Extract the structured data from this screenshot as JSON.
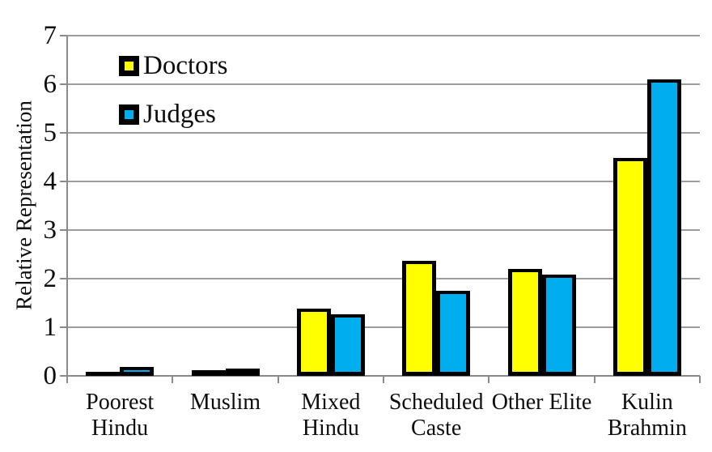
{
  "chart_data": {
    "type": "bar",
    "title": "",
    "xlabel": "",
    "ylabel": "Relative Representation",
    "ylim": [
      0,
      7
    ],
    "yticks": [
      0,
      1,
      2,
      3,
      4,
      5,
      6,
      7
    ],
    "grid": true,
    "legend_position": "top-left-inside",
    "categories": [
      "Poorest Hindu",
      "Muslim",
      "Mixed Hindu",
      "Scheduled Caste",
      "Other Elite",
      "Kulin Brahmin"
    ],
    "category_label_lines": [
      [
        "Poorest",
        "Hindu"
      ],
      [
        "Muslim"
      ],
      [
        "Mixed",
        "Hindu"
      ],
      [
        "Scheduled",
        "Caste"
      ],
      [
        "Other Elite"
      ],
      [
        "Kulin",
        "Brahmin"
      ]
    ],
    "series": [
      {
        "name": "Doctors",
        "color": "#FFFF00",
        "values": [
          0.08,
          0.12,
          1.38,
          2.37,
          2.2,
          4.48
        ]
      },
      {
        "name": "Judges",
        "color": "#00AEEF",
        "values": [
          0.18,
          0.15,
          1.27,
          1.75,
          2.08,
          6.1
        ]
      }
    ]
  },
  "colors": {
    "background": "#FFFFFF",
    "bar_border": "#000000",
    "gridline": "#9C9C9C",
    "axis": "#8A8A8A",
    "text": "#0D0D0D"
  }
}
